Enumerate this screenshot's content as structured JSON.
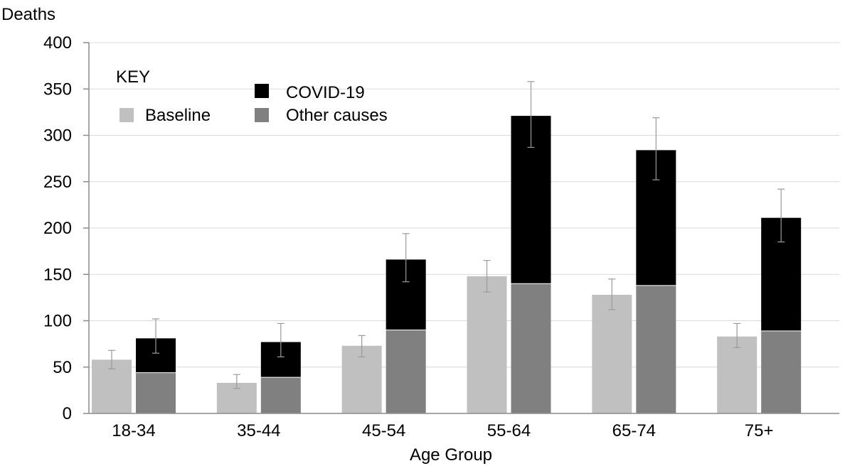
{
  "chart_data": {
    "type": "bar",
    "title": "",
    "xlabel": "Age Group",
    "ylabel": "Deaths",
    "ylim": [
      0,
      400
    ],
    "yticks": [
      0,
      50,
      100,
      150,
      200,
      250,
      300,
      350,
      400
    ],
    "grid": true,
    "categories": [
      "18-34",
      "35-44",
      "45-54",
      "55-64",
      "65-74",
      "75+"
    ],
    "legend": {
      "title": "KEY",
      "placement": "top-left",
      "entries": [
        "COVID-19",
        "Baseline",
        "Other causes"
      ]
    },
    "series": [
      {
        "name": "Baseline",
        "color": "#c0c0c0",
        "stack": "baseline",
        "values": [
          58,
          33,
          73,
          148,
          128,
          83
        ],
        "error_low": [
          48,
          27,
          61,
          131,
          112,
          71
        ],
        "error_high": [
          68,
          42,
          84,
          165,
          145,
          97
        ]
      },
      {
        "name": "Other causes",
        "color": "#808080",
        "stack": "observed",
        "values": [
          44,
          39,
          90,
          140,
          138,
          89
        ]
      },
      {
        "name": "COVID-19",
        "color": "#000000",
        "stack": "observed",
        "values": [
          37,
          38,
          76,
          181,
          146,
          122
        ],
        "error_low": [
          65,
          61,
          142,
          287,
          252,
          185
        ],
        "error_high": [
          102,
          97,
          194,
          358,
          319,
          242
        ]
      }
    ]
  }
}
